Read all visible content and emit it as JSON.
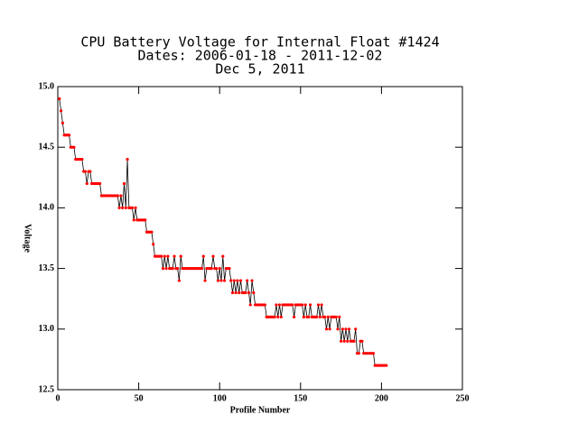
{
  "chart_data": {
    "type": "line",
    "title": "CPU Battery Voltage for Internal Float #1424",
    "subtitle": "Dates:  2006-01-18 -  2011-12-02",
    "date": "Dec  5, 2011",
    "x_label": "Profile Number",
    "y_label": "Voltage",
    "xlim": [
      0,
      250
    ],
    "xticks": [
      0,
      50,
      100,
      150,
      200,
      250
    ],
    "ylim": [
      12.5,
      15.0
    ],
    "yticks": [
      12.5,
      {
        "value": 13.0,
        "label": "13.0"
      },
      13.5,
      {
        "value": 14.0,
        "label": "14.0"
      },
      14.5,
      {
        "value": 15.0,
        "label": "15.0"
      }
    ],
    "series": [
      {
        "color": "#000000",
        "marker_color": "#ff0000",
        "x": [
          1,
          2,
          3,
          4,
          5,
          6,
          7,
          8,
          9,
          10,
          11,
          12,
          13,
          14,
          15,
          16,
          17,
          18,
          19,
          20,
          21,
          22,
          23,
          24,
          25,
          26,
          27,
          28,
          29,
          30,
          31,
          32,
          33,
          34,
          35,
          36,
          37,
          38,
          39,
          40,
          41,
          42,
          43,
          44,
          45,
          46,
          47,
          48,
          49,
          50,
          51,
          52,
          53,
          54,
          55,
          56,
          57,
          58,
          59,
          60,
          61,
          62,
          63,
          64,
          65,
          66,
          67,
          68,
          69,
          70,
          71,
          72,
          73,
          74,
          75,
          76,
          77,
          78,
          79,
          80,
          81,
          82,
          83,
          84,
          85,
          86,
          87,
          88,
          89,
          90,
          91,
          92,
          93,
          94,
          95,
          96,
          97,
          98,
          99,
          100,
          101,
          102,
          103,
          104,
          105,
          106,
          107,
          108,
          109,
          110,
          111,
          112,
          113,
          114,
          115,
          116,
          117,
          118,
          119,
          120,
          121,
          122,
          123,
          124,
          125,
          126,
          127,
          128,
          129,
          130,
          131,
          132,
          133,
          134,
          135,
          136,
          137,
          138,
          139,
          140,
          141,
          142,
          143,
          144,
          145,
          146,
          147,
          148,
          149,
          150,
          151,
          152,
          153,
          154,
          155,
          156,
          157,
          158,
          159,
          160,
          161,
          162,
          163,
          164,
          165,
          166,
          167,
          168,
          169,
          170,
          171,
          172,
          173,
          174,
          175,
          176,
          177,
          178,
          179,
          180,
          181,
          182,
          183,
          184,
          185,
          186,
          187,
          188,
          189,
          190,
          191,
          192,
          193,
          194,
          195,
          196,
          197,
          198,
          199,
          200,
          201,
          202,
          203
        ],
        "values": [
          14.9,
          14.8,
          14.7,
          14.6,
          14.6,
          14.6,
          14.6,
          14.5,
          14.5,
          14.5,
          14.4,
          14.4,
          14.4,
          14.4,
          14.4,
          14.3,
          14.3,
          14.2,
          14.3,
          14.3,
          14.2,
          14.2,
          14.2,
          14.2,
          14.2,
          14.2,
          14.1,
          14.1,
          14.1,
          14.1,
          14.1,
          14.1,
          14.1,
          14.1,
          14.1,
          14.1,
          14.1,
          14.0,
          14.1,
          14.0,
          14.2,
          14.0,
          14.4,
          14.0,
          14.0,
          14.0,
          13.9,
          14.0,
          13.9,
          13.9,
          13.9,
          13.9,
          13.9,
          13.9,
          13.8,
          13.8,
          13.8,
          13.8,
          13.7,
          13.6,
          13.6,
          13.6,
          13.6,
          13.6,
          13.5,
          13.6,
          13.5,
          13.6,
          13.5,
          13.5,
          13.5,
          13.6,
          13.5,
          13.5,
          13.4,
          13.6,
          13.5,
          13.5,
          13.5,
          13.5,
          13.5,
          13.5,
          13.5,
          13.5,
          13.5,
          13.5,
          13.5,
          13.5,
          13.5,
          13.6,
          13.4,
          13.5,
          13.5,
          13.5,
          13.5,
          13.6,
          13.5,
          13.5,
          13.4,
          13.5,
          13.4,
          13.6,
          13.4,
          13.5,
          13.5,
          13.5,
          13.4,
          13.3,
          13.4,
          13.3,
          13.4,
          13.3,
          13.4,
          13.3,
          13.3,
          13.3,
          13.4,
          13.3,
          13.2,
          13.4,
          13.3,
          13.2,
          13.2,
          13.2,
          13.2,
          13.2,
          13.2,
          13.2,
          13.1,
          13.1,
          13.1,
          13.1,
          13.1,
          13.1,
          13.2,
          13.1,
          13.2,
          13.1,
          13.2,
          13.2,
          13.2,
          13.2,
          13.2,
          13.2,
          13.2,
          13.1,
          13.2,
          13.2,
          13.2,
          13.2,
          13.2,
          13.1,
          13.2,
          13.1,
          13.1,
          13.2,
          13.1,
          13.1,
          13.1,
          13.1,
          13.2,
          13.1,
          13.2,
          13.1,
          13.1,
          13.0,
          13.1,
          13.0,
          13.1,
          13.1,
          13.1,
          13.1,
          13.0,
          13.1,
          12.9,
          13.0,
          12.9,
          13.0,
          12.9,
          13.0,
          12.9,
          12.9,
          12.9,
          13.0,
          12.8,
          12.8,
          12.9,
          12.9,
          12.8,
          12.8,
          12.8,
          12.8,
          12.8,
          12.8,
          12.8,
          12.7,
          12.7,
          12.7,
          12.7,
          12.7,
          12.7,
          12.7,
          12.7
        ]
      }
    ]
  }
}
